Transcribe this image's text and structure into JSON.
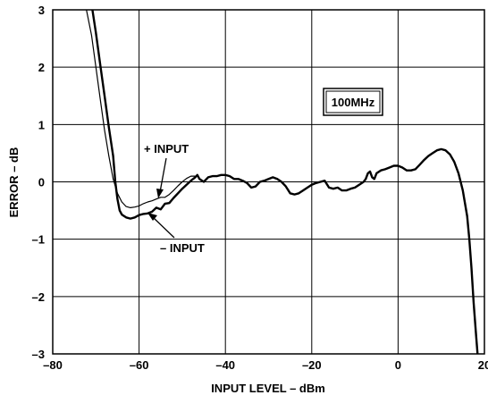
{
  "chart_data": {
    "type": "line",
    "title": "",
    "xlabel": "INPUT LEVEL – dBm",
    "ylabel": "ERROR – dB",
    "xlim": [
      -80,
      20
    ],
    "ylim": [
      -3,
      3
    ],
    "xticks": [
      -80,
      -60,
      -40,
      -20,
      0,
      20
    ],
    "xtick_labels": [
      "–80",
      "–60",
      "–40",
      "–20",
      "0",
      "20"
    ],
    "yticks": [
      -3,
      -2,
      -1,
      0,
      1,
      2,
      3
    ],
    "ytick_labels": [
      "–3",
      "–2",
      "–1",
      "0",
      "1",
      "2",
      "3"
    ],
    "grid": true,
    "frequency_label": "100MHz",
    "annotations": [
      {
        "text": "+ INPUT",
        "points_to": [
          -55.5,
          -0.27
        ]
      },
      {
        "text": "– INPUT",
        "points_to": [
          -57.5,
          -0.52
        ]
      }
    ],
    "series": [
      {
        "name": "+ INPUT",
        "points": [
          [
            -72.2,
            3.0
          ],
          [
            -71,
            2.55
          ],
          [
            -70,
            2.0
          ],
          [
            -69,
            1.45
          ],
          [
            -68,
            0.9
          ],
          [
            -67,
            0.45
          ],
          [
            -66,
            0.05
          ],
          [
            -65,
            -0.2
          ],
          [
            -64,
            -0.35
          ],
          [
            -63,
            -0.43
          ],
          [
            -62,
            -0.45
          ],
          [
            -61,
            -0.44
          ],
          [
            -60,
            -0.42
          ],
          [
            -59,
            -0.38
          ],
          [
            -58,
            -0.35
          ],
          [
            -57,
            -0.33
          ],
          [
            -56,
            -0.3
          ],
          [
            -55,
            -0.27
          ],
          [
            -54,
            -0.27
          ],
          [
            -53,
            -0.22
          ],
          [
            -52,
            -0.15
          ],
          [
            -51,
            -0.07
          ],
          [
            -50,
            0.0
          ],
          [
            -49,
            0.06
          ],
          [
            -48,
            0.1
          ],
          [
            -47,
            0.1
          ]
        ]
      },
      {
        "name": "– INPUT",
        "points": [
          [
            -70.8,
            3.0
          ],
          [
            -70,
            2.6
          ],
          [
            -69,
            2.05
          ],
          [
            -68,
            1.5
          ],
          [
            -67,
            0.95
          ],
          [
            -66,
            0.45
          ],
          [
            -65.5,
            0.0
          ],
          [
            -65,
            -0.3
          ],
          [
            -64.5,
            -0.5
          ],
          [
            -64,
            -0.57
          ],
          [
            -63,
            -0.62
          ],
          [
            -62,
            -0.64
          ],
          [
            -61,
            -0.62
          ],
          [
            -60,
            -0.58
          ],
          [
            -59,
            -0.56
          ],
          [
            -58,
            -0.55
          ],
          [
            -57,
            -0.52
          ],
          [
            -56,
            -0.45
          ],
          [
            -55,
            -0.48
          ],
          [
            -54,
            -0.38
          ],
          [
            -53,
            -0.37
          ],
          [
            -52,
            -0.28
          ],
          [
            -51,
            -0.2
          ],
          [
            -50,
            -0.12
          ],
          [
            -49,
            -0.05
          ],
          [
            -48,
            0.02
          ],
          [
            -47,
            0.08
          ],
          [
            -46.5,
            0.12
          ],
          [
            -46,
            0.05
          ],
          [
            -45,
            0.0
          ],
          [
            -44,
            0.08
          ],
          [
            -43,
            0.1
          ],
          [
            -42,
            0.1
          ],
          [
            -41,
            0.12
          ],
          [
            -40,
            0.12
          ],
          [
            -39,
            0.1
          ],
          [
            -38,
            0.05
          ],
          [
            -37,
            0.05
          ],
          [
            -36,
            0.02
          ],
          [
            -35,
            -0.02
          ],
          [
            -34,
            -0.1
          ],
          [
            -33,
            -0.08
          ],
          [
            -32,
            0.0
          ],
          [
            -31,
            0.02
          ],
          [
            -30,
            0.05
          ],
          [
            -29,
            0.08
          ],
          [
            -28,
            0.05
          ],
          [
            -27,
            0.0
          ],
          [
            -26,
            -0.08
          ],
          [
            -25,
            -0.2
          ],
          [
            -24,
            -0.22
          ],
          [
            -23,
            -0.2
          ],
          [
            -22,
            -0.15
          ],
          [
            -21,
            -0.1
          ],
          [
            -20,
            -0.05
          ],
          [
            -19,
            -0.02
          ],
          [
            -18,
            0.0
          ],
          [
            -17,
            0.02
          ],
          [
            -16,
            -0.1
          ],
          [
            -15,
            -0.12
          ],
          [
            -14,
            -0.1
          ],
          [
            -13,
            -0.15
          ],
          [
            -12,
            -0.15
          ],
          [
            -11,
            -0.12
          ],
          [
            -10,
            -0.1
          ],
          [
            -9,
            -0.05
          ],
          [
            -8,
            0.0
          ],
          [
            -7.5,
            0.05
          ],
          [
            -7,
            0.15
          ],
          [
            -6.5,
            0.18
          ],
          [
            -6,
            0.08
          ],
          [
            -5.5,
            0.05
          ],
          [
            -5,
            0.15
          ],
          [
            -4,
            0.2
          ],
          [
            -3,
            0.22
          ],
          [
            -2,
            0.25
          ],
          [
            -1,
            0.28
          ],
          [
            0,
            0.28
          ],
          [
            1,
            0.25
          ],
          [
            2,
            0.2
          ],
          [
            3,
            0.2
          ],
          [
            4,
            0.22
          ],
          [
            5,
            0.3
          ],
          [
            6,
            0.38
          ],
          [
            7,
            0.45
          ],
          [
            8,
            0.5
          ],
          [
            9,
            0.55
          ],
          [
            10,
            0.57
          ],
          [
            11,
            0.55
          ],
          [
            12,
            0.48
          ],
          [
            13,
            0.35
          ],
          [
            14,
            0.15
          ],
          [
            15,
            -0.15
          ],
          [
            16,
            -0.6
          ],
          [
            16.5,
            -1.0
          ],
          [
            17,
            -1.5
          ],
          [
            17.5,
            -2.1
          ],
          [
            18,
            -2.6
          ],
          [
            18.4,
            -3.0
          ]
        ]
      }
    ]
  }
}
